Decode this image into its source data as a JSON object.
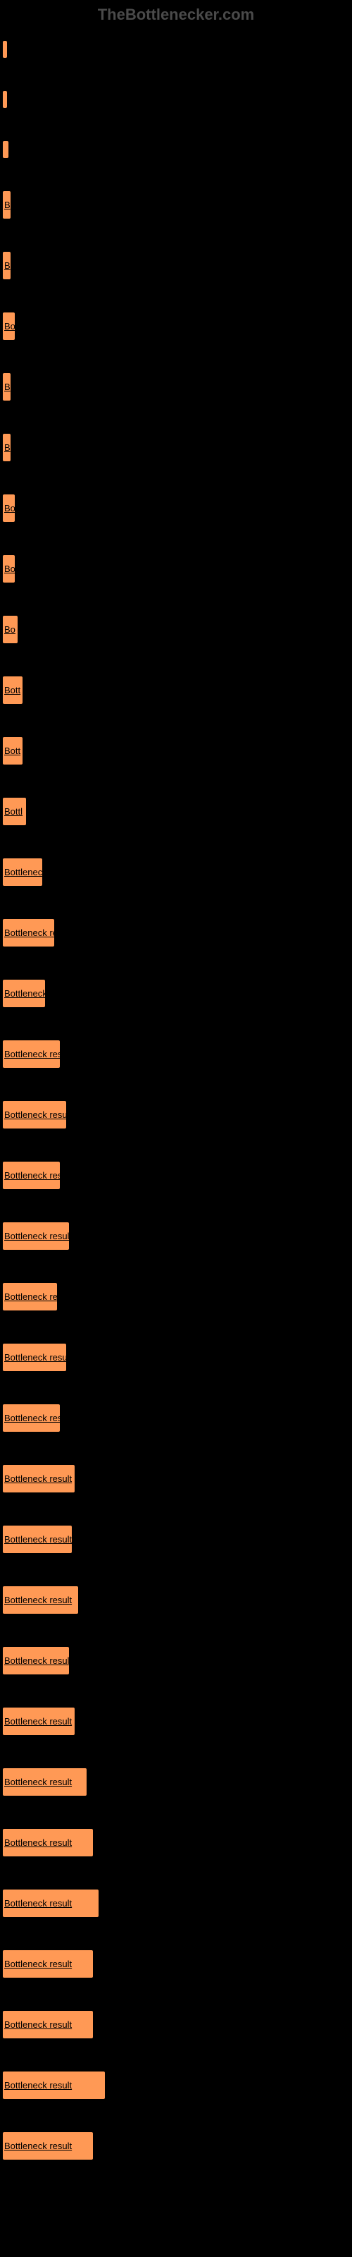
{
  "watermark": "TheBottlenecker.com",
  "label_full": "Bottleneck result",
  "bar_color": "#ff9955",
  "background_color": "#000000",
  "bars": [
    {
      "width": 2,
      "text": ""
    },
    {
      "width": 2,
      "text": ""
    },
    {
      "width": 8,
      "text": ""
    },
    {
      "width": 11,
      "text": "B"
    },
    {
      "width": 11,
      "text": "B"
    },
    {
      "width": 17,
      "text": "Bo"
    },
    {
      "width": 11,
      "text": "B"
    },
    {
      "width": 11,
      "text": "B"
    },
    {
      "width": 17,
      "text": "Bo"
    },
    {
      "width": 17,
      "text": "Bo"
    },
    {
      "width": 21,
      "text": "Bo"
    },
    {
      "width": 28,
      "text": "Bott"
    },
    {
      "width": 28,
      "text": "Bott"
    },
    {
      "width": 33,
      "text": "Bottl"
    },
    {
      "width": 56,
      "text": "Bottlenec"
    },
    {
      "width": 73,
      "text": "Bottleneck re"
    },
    {
      "width": 60,
      "text": "Bottleneck"
    },
    {
      "width": 81,
      "text": "Bottleneck resu"
    },
    {
      "width": 90,
      "text": "Bottleneck result"
    },
    {
      "width": 81,
      "text": "Bottleneck resu"
    },
    {
      "width": 94,
      "text": "Bottleneck result"
    },
    {
      "width": 77,
      "text": "Bottleneck re"
    },
    {
      "width": 90,
      "text": "Bottleneck result"
    },
    {
      "width": 81,
      "text": "Bottleneck resu"
    },
    {
      "width": 102,
      "text": "Bottleneck result"
    },
    {
      "width": 98,
      "text": "Bottleneck result"
    },
    {
      "width": 107,
      "text": "Bottleneck result"
    },
    {
      "width": 94,
      "text": "Bottleneck result"
    },
    {
      "width": 102,
      "text": "Bottleneck result"
    },
    {
      "width": 119,
      "text": "Bottleneck result"
    },
    {
      "width": 128,
      "text": "Bottleneck result"
    },
    {
      "width": 136,
      "text": "Bottleneck result"
    },
    {
      "width": 128,
      "text": "Bottleneck result"
    },
    {
      "width": 128,
      "text": "Bottleneck result"
    },
    {
      "width": 145,
      "text": "Bottleneck result"
    },
    {
      "width": 128,
      "text": "Bottleneck result"
    }
  ]
}
